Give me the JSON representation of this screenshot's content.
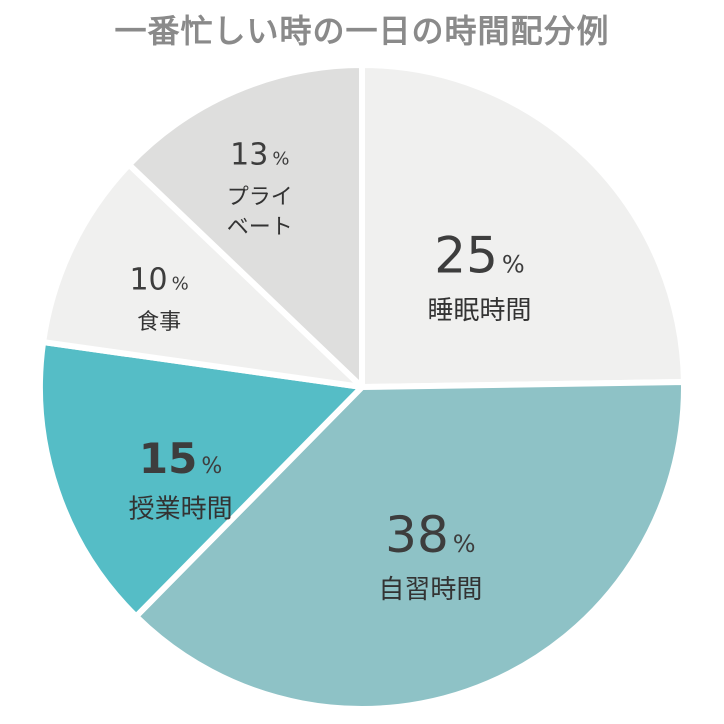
{
  "chart_data": {
    "type": "pie",
    "title": "一番忙しい時の一日の時間配分例",
    "unit": "%",
    "slices": [
      {
        "label": "睡眠時間",
        "lines": [
          "睡眠時間"
        ],
        "value": 25,
        "color": "#f0f0ef"
      },
      {
        "label": "自習時間",
        "lines": [
          "自習時間"
        ],
        "value": 38,
        "color": "#8ec2c6"
      },
      {
        "label": "授業時間",
        "lines": [
          "授業時間"
        ],
        "value": 15,
        "color": "#55bdc6"
      },
      {
        "label": "食事",
        "lines": [
          "食事"
        ],
        "value": 10,
        "color": "#f0f0ef"
      },
      {
        "label": "プライベート",
        "lines": [
          "プライ",
          "ベート"
        ],
        "value": 13,
        "color": "#dededd"
      }
    ]
  }
}
